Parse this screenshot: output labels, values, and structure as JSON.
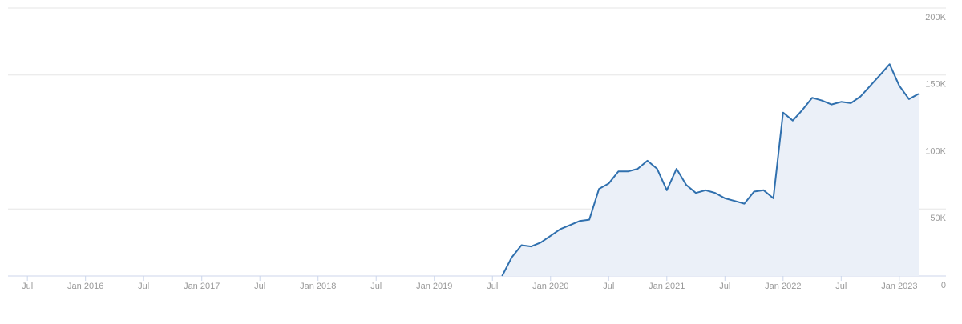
{
  "chart_data": {
    "type": "area",
    "x": [
      "2019-08",
      "2019-09",
      "2019-10",
      "2019-11",
      "2019-12",
      "2020-01",
      "2020-02",
      "2020-03",
      "2020-04",
      "2020-05",
      "2020-06",
      "2020-07",
      "2020-08",
      "2020-09",
      "2020-10",
      "2020-11",
      "2020-12",
      "2021-01",
      "2021-02",
      "2021-03",
      "2021-04",
      "2021-05",
      "2021-06",
      "2021-07",
      "2021-08",
      "2021-09",
      "2021-10",
      "2021-11",
      "2021-12",
      "2022-01",
      "2022-02",
      "2022-03",
      "2022-04",
      "2022-05",
      "2022-06",
      "2022-07",
      "2022-08",
      "2022-09",
      "2022-10",
      "2022-11",
      "2022-12",
      "2023-01",
      "2023-02",
      "2023-03"
    ],
    "series": [
      {
        "color": "#3070ae",
        "fill": "#ebf0f8",
        "values": [
          0,
          14000,
          23000,
          22000,
          25000,
          30000,
          35000,
          38000,
          41000,
          42000,
          65000,
          69000,
          78000,
          78000,
          80000,
          86000,
          80000,
          64000,
          80000,
          68000,
          62000,
          64000,
          62000,
          58000,
          56000,
          54000,
          63000,
          64000,
          58000,
          122000,
          116000,
          124000,
          133000,
          131000,
          128000,
          130000,
          129000,
          134000,
          142000,
          150000,
          158000,
          142000,
          132000,
          136000
        ]
      }
    ],
    "xlim": [
      "2015-05",
      "2023-03"
    ],
    "xticks": [
      {
        "value": "2015-07",
        "label": "Jul"
      },
      {
        "value": "2016-01",
        "label": "Jan 2016"
      },
      {
        "value": "2016-07",
        "label": "Jul"
      },
      {
        "value": "2017-01",
        "label": "Jan 2017"
      },
      {
        "value": "2017-07",
        "label": "Jul"
      },
      {
        "value": "2018-01",
        "label": "Jan 2018"
      },
      {
        "value": "2018-07",
        "label": "Jul"
      },
      {
        "value": "2019-01",
        "label": "Jan 2019"
      },
      {
        "value": "2019-07",
        "label": "Jul"
      },
      {
        "value": "2020-01",
        "label": "Jan 2020"
      },
      {
        "value": "2020-07",
        "label": "Jul"
      },
      {
        "value": "2021-01",
        "label": "Jan 2021"
      },
      {
        "value": "2021-07",
        "label": "Jul"
      },
      {
        "value": "2022-01",
        "label": "Jan 2022"
      },
      {
        "value": "2022-07",
        "label": "Jul"
      },
      {
        "value": "2023-01",
        "label": "Jan 2023"
      }
    ],
    "ylim": [
      0,
      200000
    ],
    "yticks": [
      0,
      {
        "value": 50000,
        "label": "50K"
      },
      {
        "value": 100000,
        "label": "100K"
      },
      {
        "value": 150000,
        "label": "150K"
      },
      {
        "value": 200000,
        "label": "200K"
      }
    ],
    "grid": true
  }
}
